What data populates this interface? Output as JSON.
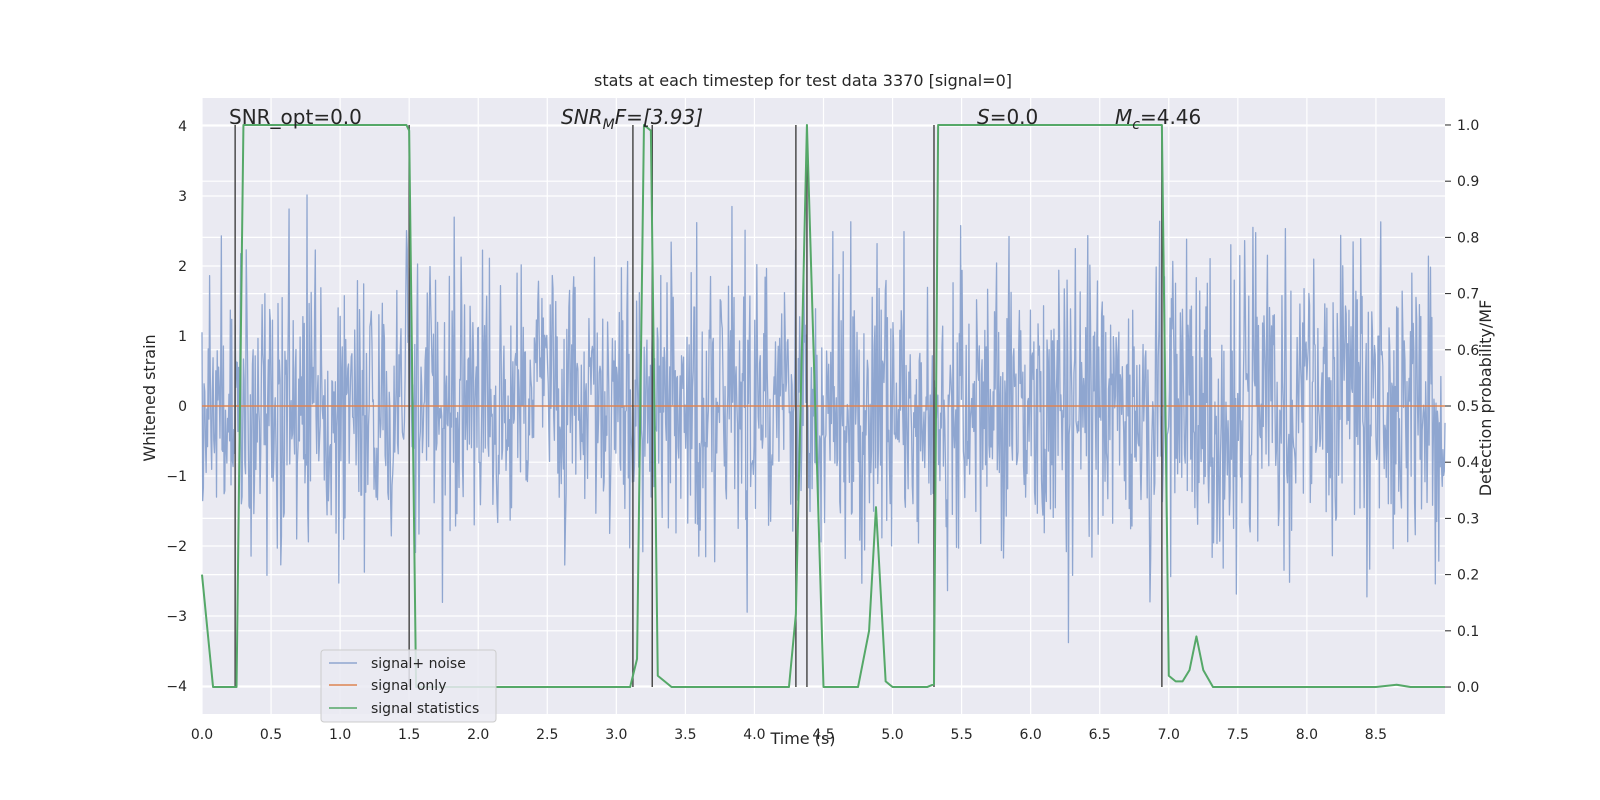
{
  "chart_data": {
    "type": "line",
    "title": "stats at each timestep for test data 3370 [signal=0]",
    "xlabel": "Time (s)",
    "ylabel": "Whitened strain",
    "y2label": "Detection probability/MF",
    "xlim": [
      0,
      9.0
    ],
    "ylim": [
      -4.4,
      4.4
    ],
    "y2lim": [
      -0.048,
      1.048
    ],
    "xticks": [
      "0.0",
      "0.5",
      "1.0",
      "1.5",
      "2.0",
      "2.5",
      "3.0",
      "3.5",
      "4.0",
      "4.5",
      "5.0",
      "5.5",
      "6.0",
      "6.5",
      "7.0",
      "7.5",
      "8.0",
      "8.5"
    ],
    "yticks": [
      "4",
      "3",
      "2",
      "1",
      "0",
      "−1",
      "−2",
      "−3",
      "−4"
    ],
    "y2ticks": [
      "1.0",
      "0.9",
      "0.8",
      "0.7",
      "0.6",
      "0.5",
      "0.4",
      "0.3",
      "0.2",
      "0.1",
      "0.0"
    ],
    "annotations": {
      "snr_opt": "SNR_opt=0.0",
      "snr_mf_sym": "SNR",
      "snr_mf_sub": "M",
      "snr_mf_rest": "F=[3.93]",
      "s_sym": "S",
      "s_rest": "=0.0",
      "mc_sym": "M",
      "mc_sub": "c",
      "mc_rest": "=4.46"
    },
    "legend": {
      "position": "lower-left",
      "entries": [
        "signal+ noise",
        "signal only",
        "signal statistics"
      ]
    },
    "colors": {
      "noise": "#8fa6d0",
      "signal": "#dd8452",
      "stats": "#55a868",
      "vlines": "#4c4c4c",
      "background": "#eaeaf2",
      "grid": "#ffffff"
    },
    "series": [
      {
        "name": "signal statistics",
        "axis": "right",
        "x": [
          0.0,
          0.08,
          0.16,
          0.24,
          0.25,
          0.3,
          1.48,
          1.5,
          1.55,
          1.6,
          3.1,
          3.15,
          3.2,
          3.25,
          3.3,
          3.4,
          4.25,
          4.3,
          4.38,
          4.5,
          4.75,
          4.83,
          4.88,
          4.95,
          5.0,
          5.25,
          5.3,
          5.33,
          5.4,
          6.95,
          7.0,
          7.05,
          7.1,
          7.15,
          7.2,
          7.25,
          7.32,
          8.5,
          8.65,
          8.75,
          9.0
        ],
        "y": [
          0.2,
          0.0,
          0.0,
          0.0,
          0.0,
          1.0,
          1.0,
          0.99,
          0.0,
          0.0,
          0.0,
          0.05,
          1.0,
          0.99,
          0.02,
          0.0,
          0.0,
          0.13,
          1.0,
          0.0,
          0.0,
          0.1,
          0.32,
          0.01,
          0.0,
          0.0,
          0.005,
          1.0,
          1.0,
          1.0,
          0.02,
          0.01,
          0.01,
          0.03,
          0.09,
          0.03,
          0.0,
          0.0,
          0.004,
          0.0,
          0.0
        ]
      },
      {
        "name": "signal only",
        "axis": "left",
        "x": [
          0.0,
          9.0
        ],
        "y": [
          0.0,
          0.0
        ]
      },
      {
        "name": "signal+ noise",
        "axis": "left",
        "kind": "noise",
        "std": 1.0,
        "amplitude_range": [
          -4.0,
          4.0
        ],
        "samples": 1800,
        "seed": 3370
      }
    ],
    "vlines": [
      0.24,
      1.5,
      3.12,
      3.26,
      4.3,
      4.38,
      5.3,
      6.95
    ]
  }
}
